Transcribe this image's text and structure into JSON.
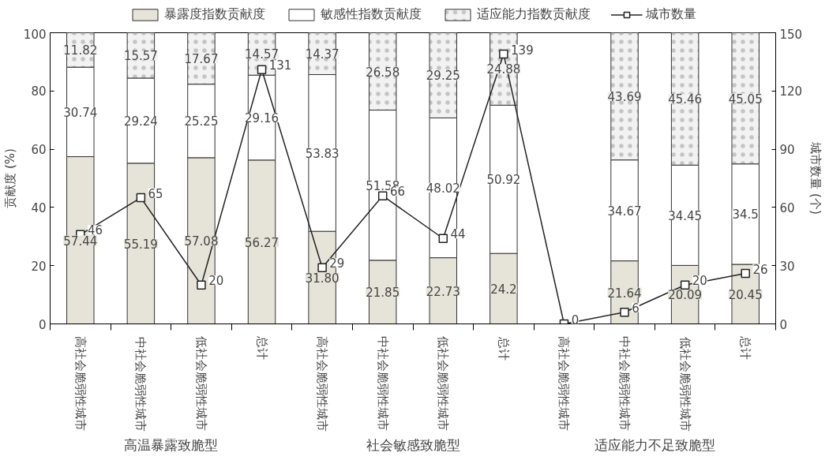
{
  "chart_data": {
    "type": "bar",
    "stacked": true,
    "legend": "top",
    "marker": "square",
    "categories": [
      "高社会脆弱性城市",
      "中社会脆弱性城市",
      "低社会脆弱性城市",
      "总计",
      "高社会脆弱性城市",
      "中社会脆弱性城市",
      "低社会脆弱性城市",
      "总计",
      "高社会脆弱性城市",
      "中社会脆弱性城市",
      "低社会脆弱性城市",
      "总计"
    ],
    "ylabel": "贡献度 (%)",
    "y2label": "城市数量 (个)",
    "ylim": [
      0,
      100
    ],
    "yticks": [
      0,
      20,
      40,
      60,
      80,
      100
    ],
    "y2lim": [
      0,
      150
    ],
    "y2ticks": [
      0,
      30,
      60,
      90,
      120,
      150
    ],
    "annotations": [
      "高温暴露致脆型",
      "社会敏感致脆型",
      "适应能力不足致脆型"
    ],
    "series": [
      {
        "name": "暴露度指数贡献度",
        "color": "#e6e3d8",
        "values": [
          57.44,
          55.19,
          57.08,
          56.27,
          31.8,
          21.85,
          22.73,
          24.2,
          null,
          21.64,
          20.09,
          20.45
        ],
        "value_labels": [
          "57.44",
          "55.19",
          "57.08",
          "56.27",
          "31.80",
          "21.85",
          "22.73",
          "24.2",
          null,
          "21.64",
          "20.09",
          "20.45"
        ]
      },
      {
        "name": "敏感性指数贡献度",
        "color": "#ffffff",
        "values": [
          30.74,
          29.24,
          25.25,
          29.16,
          53.83,
          51.58,
          48.02,
          50.92,
          null,
          34.67,
          34.45,
          34.5
        ],
        "value_labels": [
          "30.74",
          "29.24",
          "25.25",
          "29.16",
          "53.83",
          "51.58",
          "48.02",
          "50.92",
          null,
          "34.67",
          "34.45",
          "34.5"
        ]
      },
      {
        "name": "适应能力指数贡献度",
        "color": "#f2f2f2",
        "values": [
          11.82,
          15.57,
          17.67,
          14.57,
          14.37,
          26.58,
          29.25,
          24.88,
          null,
          43.69,
          45.46,
          45.05
        ],
        "value_labels": [
          "11.82",
          "15.57",
          "17.67",
          "14.57",
          "14.37",
          "26.58",
          "29.25",
          "24.88",
          null,
          "43.69",
          "45.46",
          "45.05"
        ]
      },
      {
        "name": "城市数量",
        "type": "line",
        "axis": "y2",
        "color": "#222222",
        "values": [
          46,
          65,
          20,
          131,
          29,
          66,
          44,
          139,
          0,
          6,
          20,
          26
        ],
        "value_labels": [
          "46",
          "65",
          "20",
          "131",
          "29",
          "66",
          "44",
          "139",
          "0",
          "6",
          "20",
          "26"
        ]
      }
    ]
  }
}
